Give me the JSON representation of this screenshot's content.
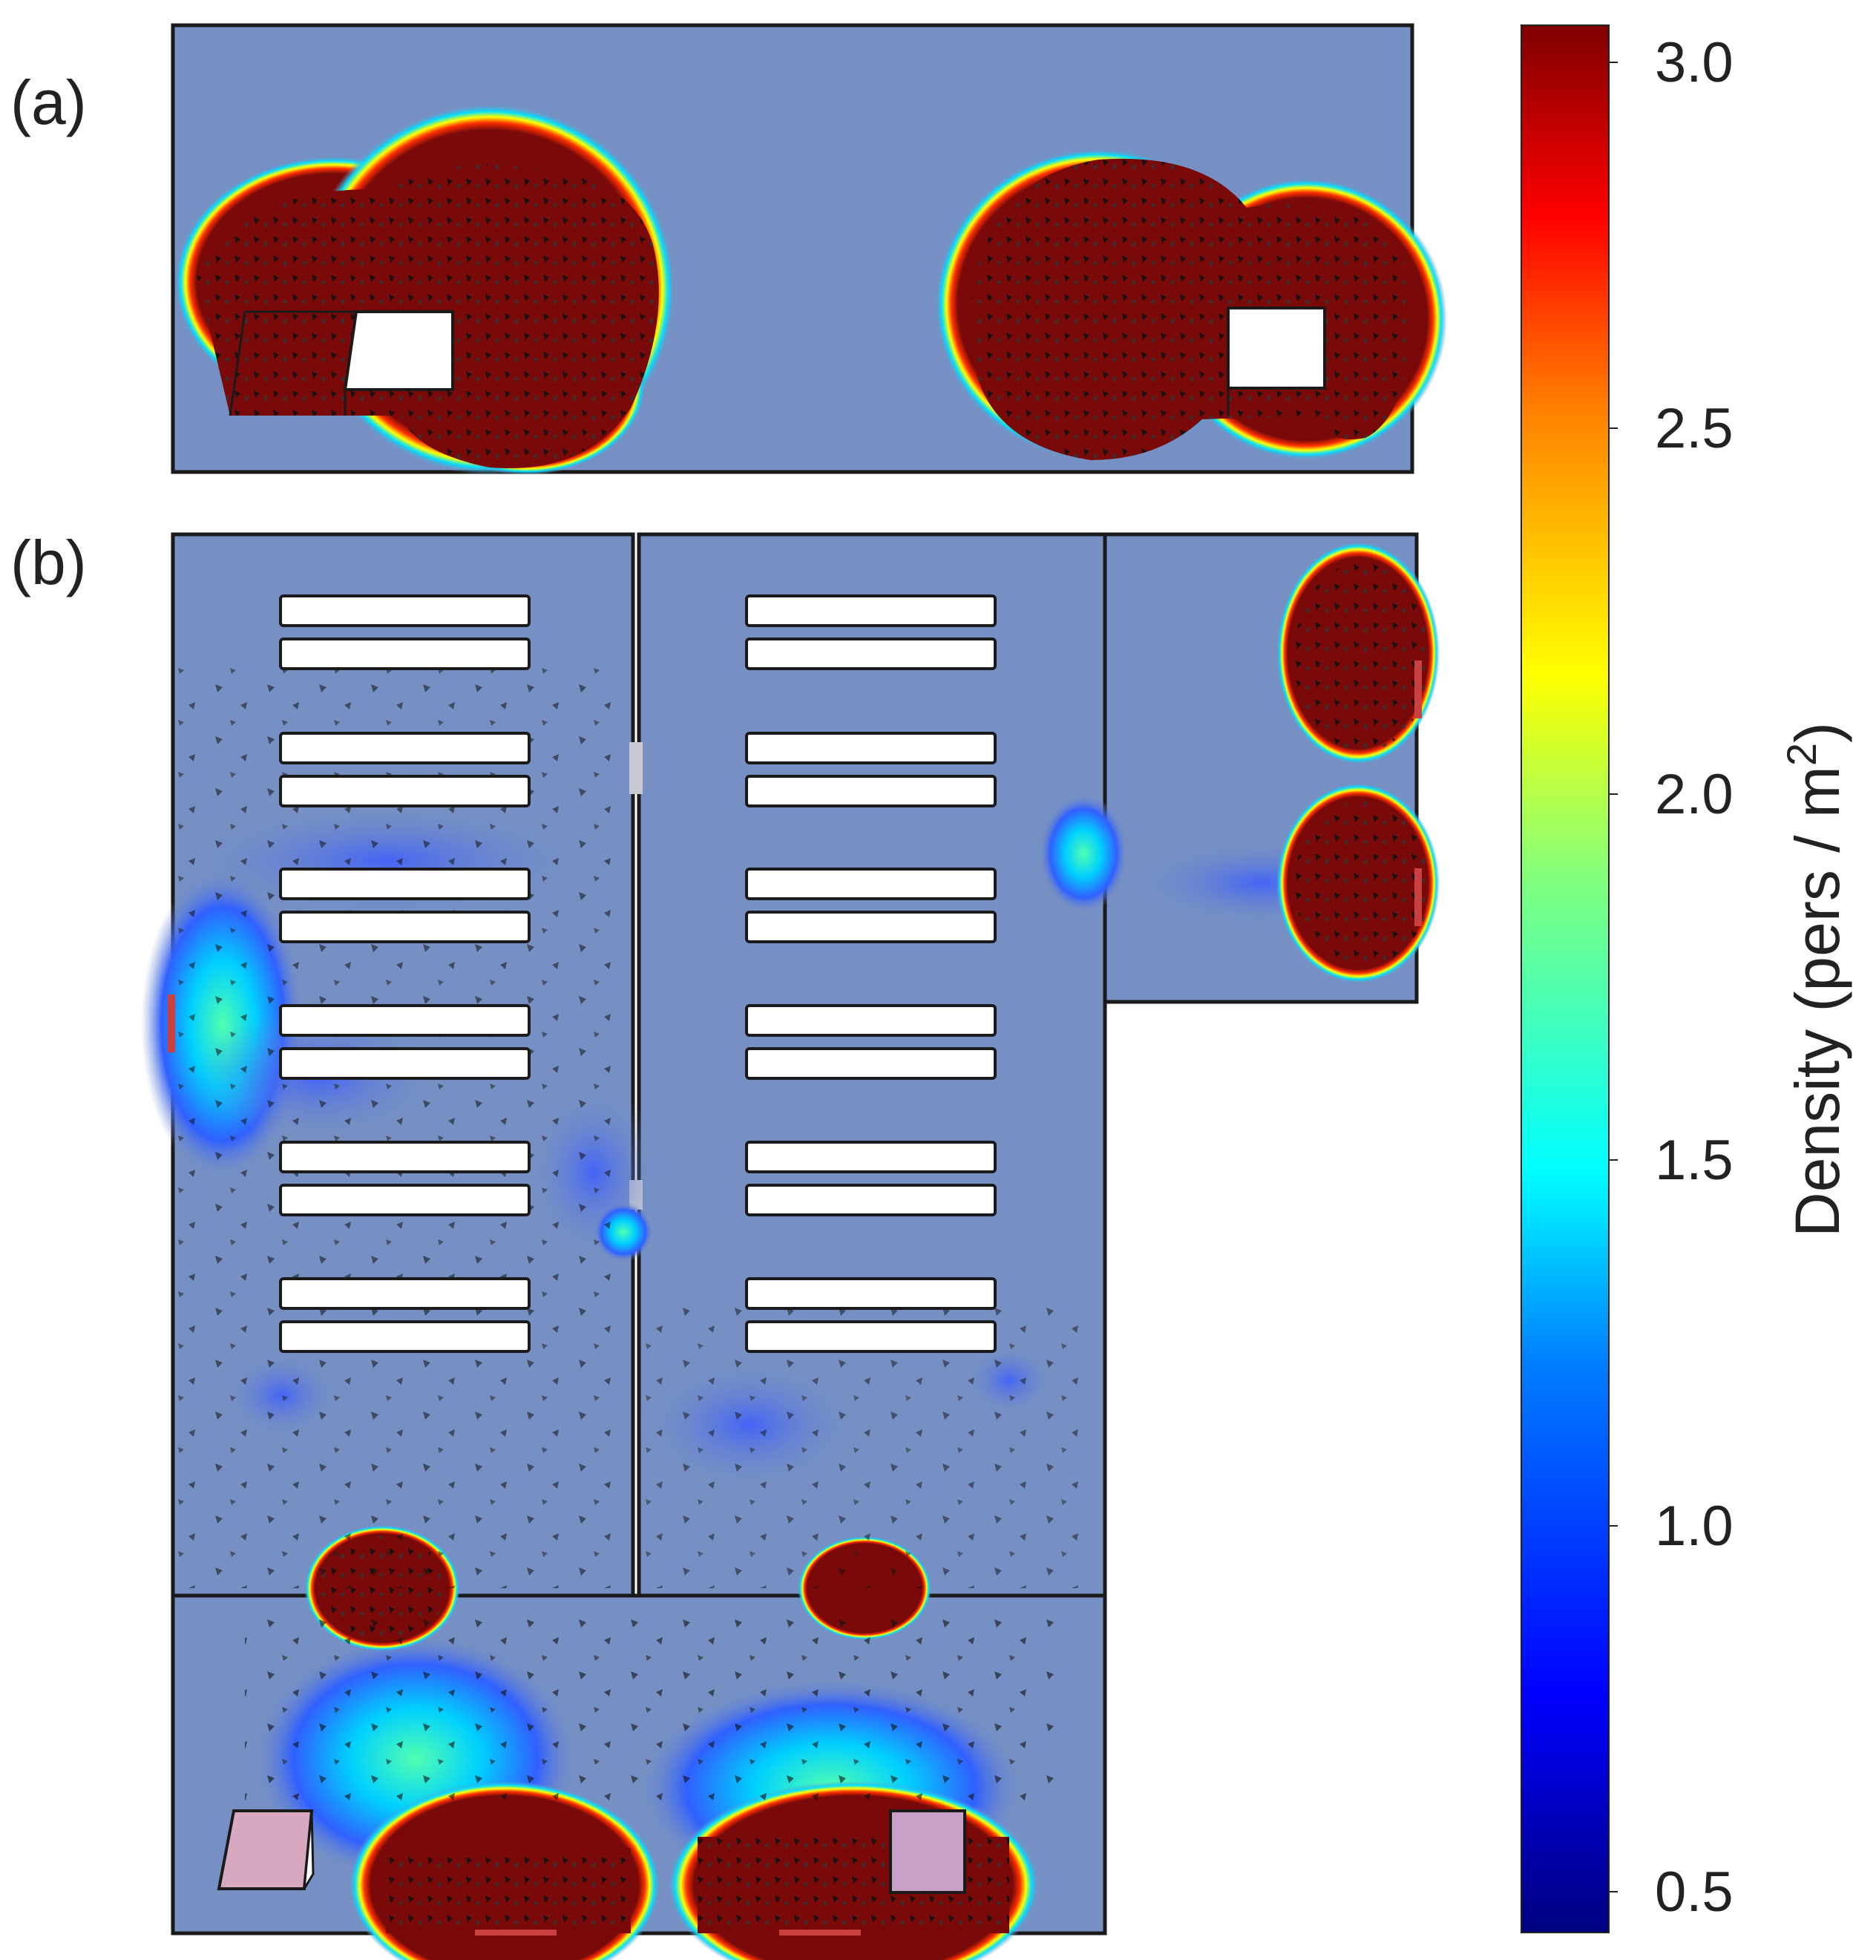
{
  "panels": {
    "a": {
      "label": "(a)"
    },
    "b": {
      "label": "(b)"
    }
  },
  "colorbar": {
    "title_prefix": "Density (pers / m",
    "title_sup": "2",
    "title_suffix": ")",
    "ticks": [
      "0.5",
      "1.0",
      "1.5",
      "2.0",
      "2.5",
      "3.0"
    ],
    "min": 0.5,
    "max": 3.0,
    "colormap": [
      "#00007f",
      "#0000ff",
      "#007fff",
      "#00ffff",
      "#7fff7f",
      "#ffff00",
      "#ff7f00",
      "#ff0000",
      "#7f0000"
    ]
  },
  "colors": {
    "floor": "#7690c4",
    "wall": "#1a1a1a",
    "obstacle": "#ffffff",
    "high_density": "#7a0a0a"
  }
}
